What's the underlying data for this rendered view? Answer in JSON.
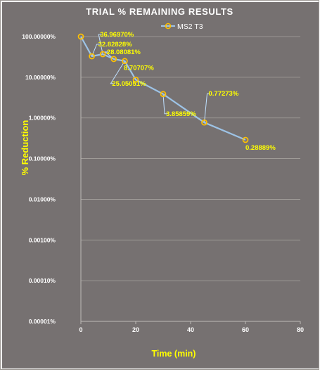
{
  "chart_data": {
    "type": "line",
    "title": "TRIAL % REMAINING  RESULTS",
    "xlabel": "Time (min)",
    "ylabel": "% Reduction",
    "x_scale": "linear",
    "y_scale": "log",
    "xlim": [
      0,
      80
    ],
    "ylim": [
      1e-05,
      100
    ],
    "x_ticks": [
      "0",
      "20",
      "40",
      "60",
      "80"
    ],
    "y_ticks": [
      "100.00000%",
      "10.00000%",
      "1.00000%",
      "0.10000%",
      "0.01000%",
      "0.00100%",
      "0.00010%",
      "0.00001%"
    ],
    "legend_position": "top-center",
    "grid": {
      "horizontal": true,
      "vertical": false
    },
    "colors": {
      "plot_background": "#767171",
      "line": "#9dc3e6",
      "marker": "#ffc000",
      "labels": "#ffff00",
      "text": "#ffffff"
    },
    "series": [
      {
        "name": "MS2 T3",
        "x": [
          0,
          4,
          8,
          12,
          16,
          20,
          30,
          45,
          60
        ],
        "y": [
          100,
          32.82828,
          36.9697,
          28.08081,
          25.05051,
          8.70707,
          3.85859,
          0.77273,
          0.28889
        ],
        "data_labels": [
          "",
          "32.82828%",
          "36.96970%",
          "28.08081%",
          "25.05051%",
          "8.70707%",
          "3.85859%",
          "0.77273%",
          "0.28889%"
        ]
      }
    ]
  }
}
